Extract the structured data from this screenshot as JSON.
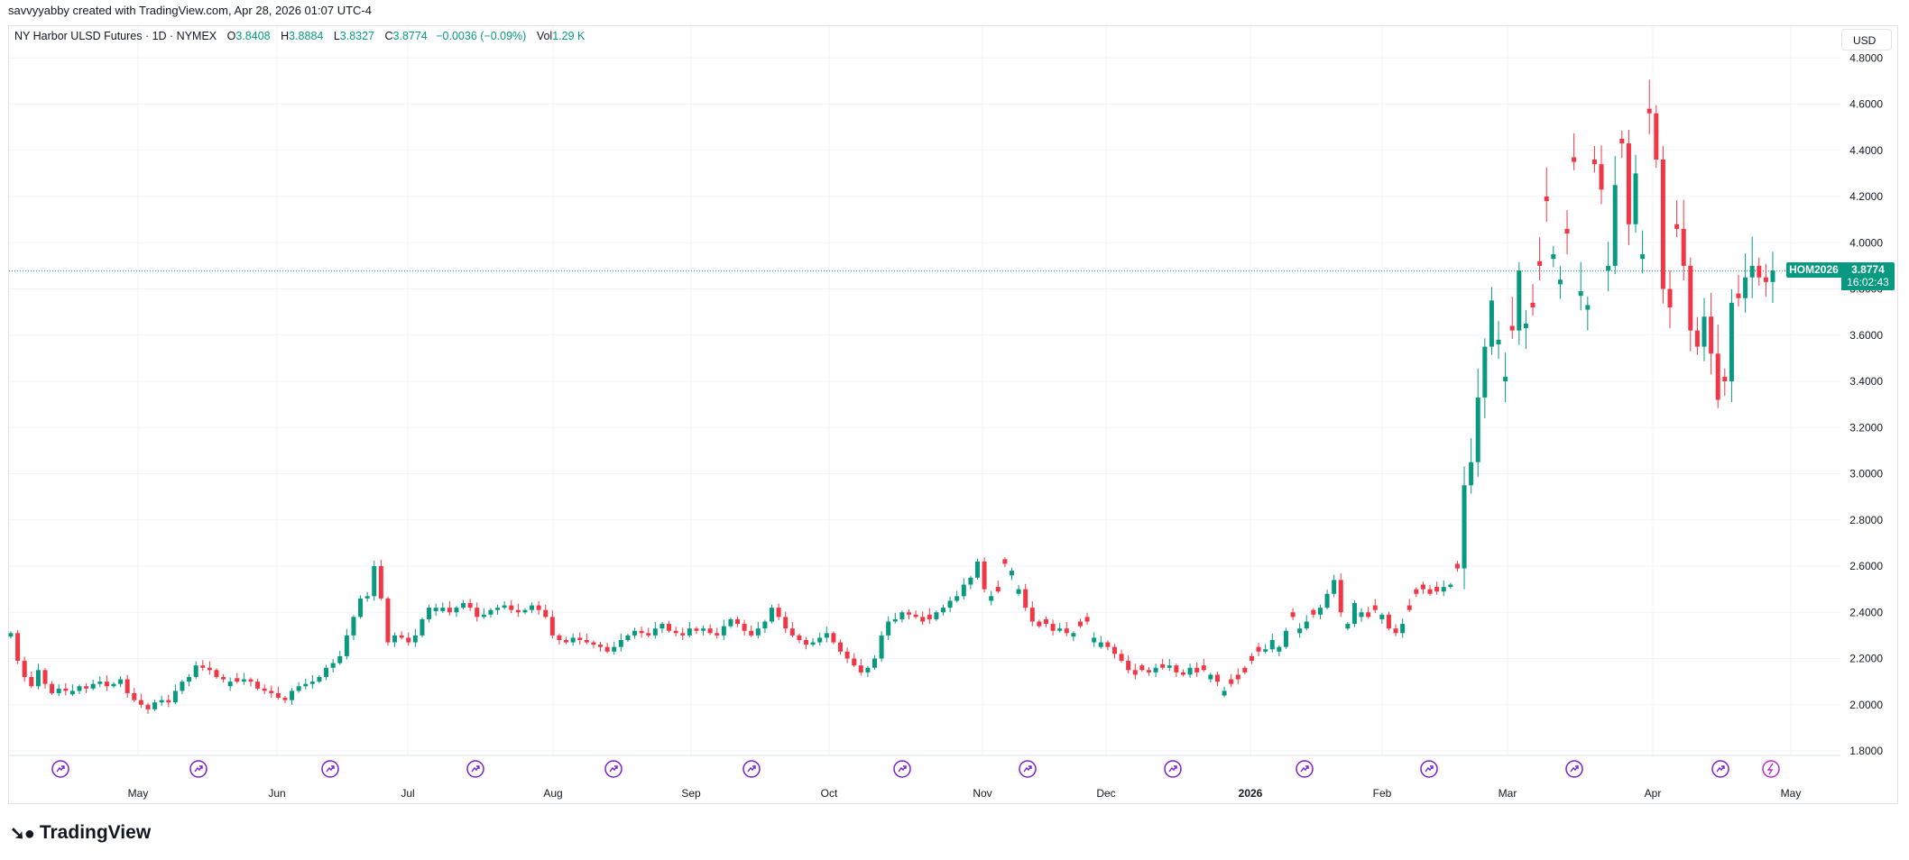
{
  "header": {
    "attribution": "savvyyabby created with TradingView.com, Apr 28, 2026 01:07 UTC-4"
  },
  "legend": {
    "symbol": "NY Harbor ULSD Futures · 1D · NYMEX",
    "open_label": "O",
    "open": "3.8408",
    "high_label": "H",
    "high": "3.8884",
    "low_label": "L",
    "low": "3.8327",
    "close_label": "C",
    "close": "3.8774",
    "change": "−0.0036 (−0.09%)",
    "vol_label": "Vol",
    "vol": "1.29 K"
  },
  "currency": "USD",
  "price_tag": {
    "symbol": "HOM2026",
    "price": "3.8774",
    "countdown": "16:02:43"
  },
  "footer": {
    "brand": "TradingView"
  },
  "colors": {
    "up": "#089981",
    "down": "#f23645",
    "grid": "#f0f3fa",
    "event": "#7b1fd6"
  },
  "chart_data": {
    "type": "candlestick",
    "y_ticks": [
      "4.8000",
      "4.6000",
      "4.4000",
      "4.2000",
      "4.0000",
      "3.8000",
      "3.6000",
      "3.4000",
      "3.2000",
      "3.0000",
      "2.8000",
      "2.6000",
      "2.4000",
      "2.2000",
      "2.0000",
      "1.8000"
    ],
    "ylim": [
      1.75,
      4.85
    ],
    "x_labels": [
      "May",
      "Jun",
      "Jul",
      "Aug",
      "Sep",
      "Oct",
      "Nov",
      "Dec",
      "2026",
      "Feb",
      "Mar",
      "Apr",
      "May"
    ],
    "last_price": 3.8774,
    "closes": [
      2.31,
      2.19,
      2.12,
      2.08,
      2.15,
      2.09,
      2.05,
      2.07,
      2.06,
      2.06,
      2.08,
      2.07,
      2.09,
      2.1,
      2.08,
      2.09,
      2.11,
      2.05,
      2.02,
      2.0,
      1.98,
      2.01,
      2.02,
      2.01,
      2.06,
      2.1,
      2.12,
      2.17,
      2.16,
      2.15,
      2.12,
      2.11,
      2.1,
      2.1,
      2.11,
      2.1,
      2.07,
      2.06,
      2.05,
      2.03,
      2.02,
      2.06,
      2.08,
      2.09,
      2.1,
      2.12,
      2.16,
      2.18,
      2.21,
      2.3,
      2.38,
      2.46,
      2.47,
      2.6,
      2.46,
      2.27,
      2.3,
      2.29,
      2.27,
      2.3,
      2.37,
      2.42,
      2.42,
      2.42,
      2.4,
      2.42,
      2.44,
      2.42,
      2.38,
      2.39,
      2.41,
      2.42,
      2.43,
      2.41,
      2.4,
      2.41,
      2.43,
      2.41,
      2.38,
      2.3,
      2.28,
      2.27,
      2.29,
      2.28,
      2.27,
      2.26,
      2.25,
      2.23,
      2.25,
      2.28,
      2.3,
      2.32,
      2.31,
      2.3,
      2.33,
      2.35,
      2.32,
      2.31,
      2.3,
      2.33,
      2.32,
      2.33,
      2.31,
      2.3,
      2.34,
      2.37,
      2.35,
      2.32,
      2.3,
      2.33,
      2.36,
      2.42,
      2.38,
      2.33,
      2.3,
      2.28,
      2.26,
      2.27,
      2.29,
      2.31,
      2.27,
      2.23,
      2.2,
      2.17,
      2.14,
      2.16,
      2.2,
      2.3,
      2.36,
      2.37,
      2.4,
      2.39,
      2.38,
      2.36,
      2.37,
      2.4,
      2.42,
      2.45,
      2.47,
      2.52,
      2.55,
      2.62,
      2.5,
      2.47,
      2.49,
      2.61,
      2.58,
      2.5,
      2.42,
      2.36,
      2.34,
      2.35,
      2.32,
      2.33,
      2.31,
      2.31,
      2.34,
      2.36,
      2.29,
      2.27,
      2.25,
      2.22,
      2.19,
      2.15,
      2.13,
      2.15,
      2.14,
      2.16,
      2.16,
      2.17,
      2.14,
      2.13,
      2.16,
      2.14,
      2.15,
      2.13,
      2.1,
      2.06,
      2.09,
      2.11,
      2.14,
      2.19,
      2.23,
      2.24,
      2.28,
      2.25,
      2.32,
      2.38,
      2.33,
      2.36,
      2.39,
      2.42,
      2.48,
      2.54,
      2.4,
      2.35,
      2.44,
      2.4,
      2.38,
      2.41,
      2.39,
      2.33,
      2.31,
      2.35,
      2.41,
      2.48,
      2.5,
      2.48,
      2.49,
      2.51,
      2.52,
      2.59,
      2.95,
      3.05,
      3.33,
      3.55,
      3.75,
      3.58,
      3.42,
      3.62,
      3.88,
      3.65,
      3.72,
      3.9,
      4.18,
      3.95,
      3.84,
      4.04,
      4.35,
      3.79,
      3.73,
      4.34,
      4.23,
      3.9,
      4.25,
      4.43,
      4.08,
      4.3,
      3.95,
      4.56,
      4.36,
      3.8,
      3.72,
      4.06,
      3.9,
      3.62,
      3.55,
      3.68,
      3.52,
      3.32,
      3.4,
      3.74,
      3.76,
      3.85,
      3.9,
      3.85,
      3.83,
      3.88
    ],
    "down_indices": [
      1,
      2,
      3,
      5,
      6,
      8,
      11,
      14,
      17,
      18,
      19,
      20,
      23,
      28,
      29,
      30,
      31,
      33,
      35,
      36,
      37,
      38,
      39,
      40,
      54,
      55,
      57,
      58,
      64,
      67,
      68,
      73,
      74,
      77,
      78,
      79,
      80,
      81,
      83,
      84,
      85,
      86,
      87,
      92,
      93,
      96,
      97,
      98,
      100,
      102,
      103,
      106,
      107,
      108,
      112,
      113,
      114,
      115,
      116,
      120,
      121,
      122,
      123,
      124,
      131,
      132,
      133,
      134,
      142,
      144,
      145,
      148,
      149,
      150,
      151,
      152,
      154,
      156,
      157,
      160,
      161,
      162,
      163,
      164,
      165,
      166,
      168,
      170,
      171,
      173,
      174,
      176,
      178,
      179,
      180,
      181,
      182,
      187,
      190,
      194,
      198,
      199,
      201,
      202,
      204,
      205,
      206,
      207,
      208,
      211,
      219,
      222,
      223,
      224,
      227,
      228,
      231,
      232,
      235,
      236,
      239,
      240,
      241,
      242,
      243,
      244,
      245,
      246,
      248,
      249,
      250,
      252,
      255,
      256
    ],
    "events": 13
  }
}
